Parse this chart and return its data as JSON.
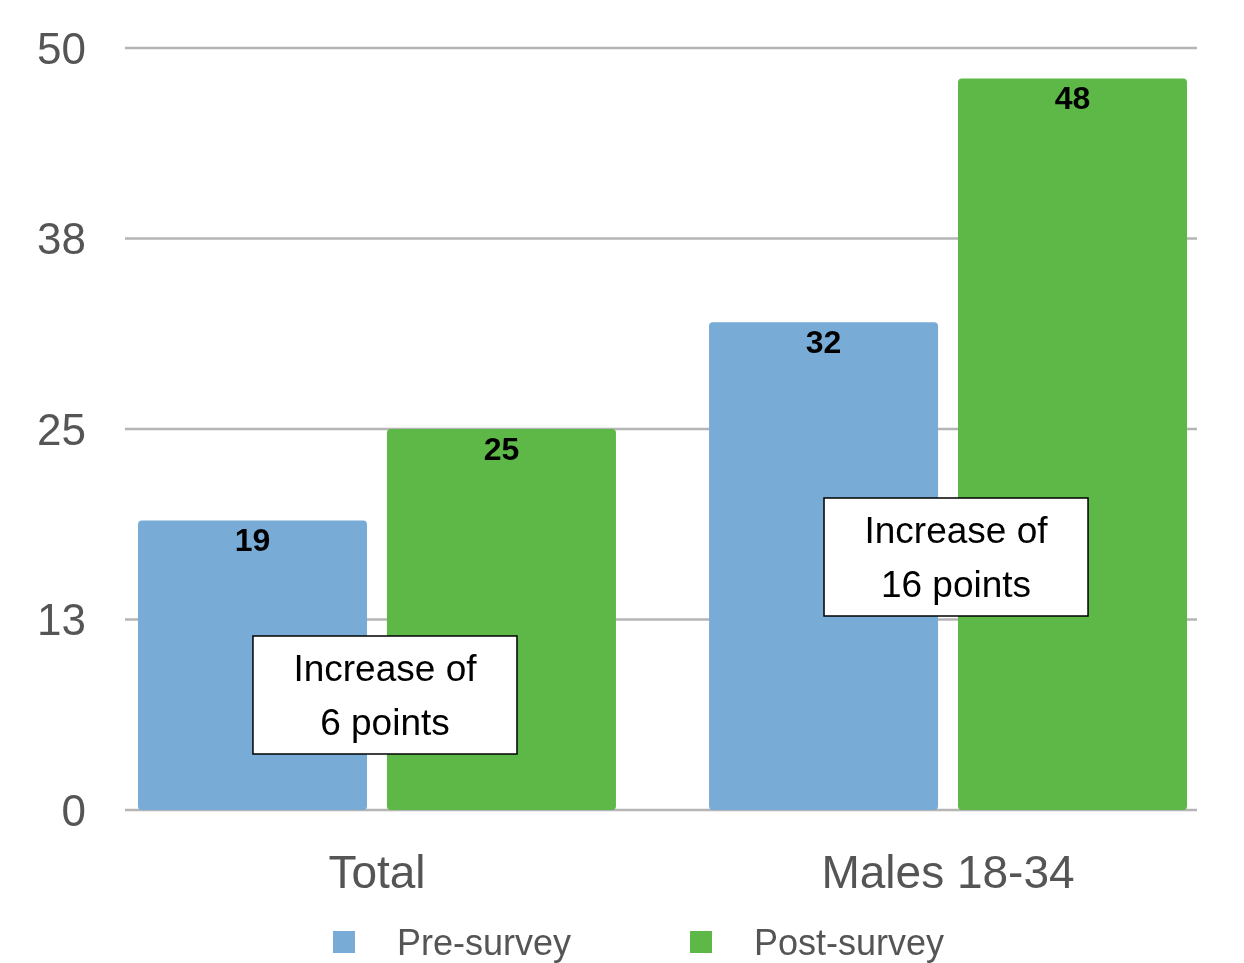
{
  "chart_data": {
    "type": "bar",
    "categories": [
      "Total",
      "Males 18-34"
    ],
    "series": [
      {
        "name": "Pre-survey",
        "color": "#78acd6",
        "values": [
          19,
          32
        ]
      },
      {
        "name": "Post-survey",
        "color": "#5db847",
        "values": [
          25,
          48
        ]
      }
    ],
    "ylim": [
      0,
      50
    ],
    "yticks": [
      0,
      {
        "value": 12.5,
        "label": "13"
      },
      25,
      {
        "value": 37.5,
        "label": "38"
      },
      50
    ],
    "grid": "y",
    "data_labels": true,
    "legend": "bottom",
    "annotations": [
      "Increase of\n6 points",
      "Increase of\n16 points"
    ]
  }
}
